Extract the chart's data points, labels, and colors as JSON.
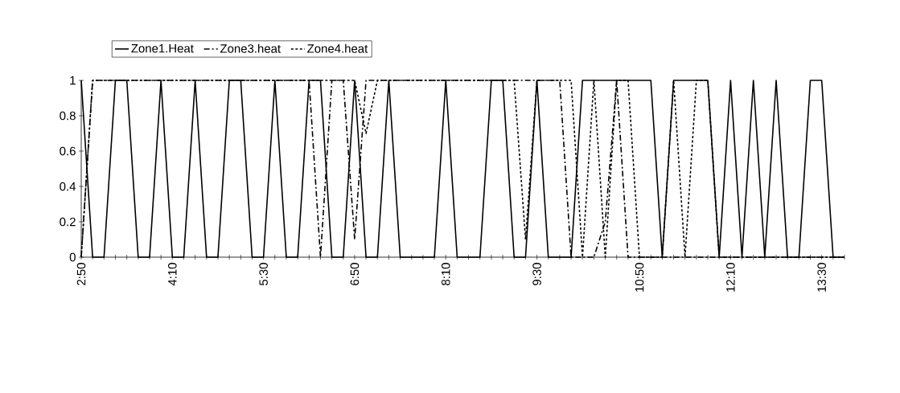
{
  "chart_data": {
    "type": "line",
    "categories": [
      "2:50",
      null,
      null,
      null,
      null,
      null,
      null,
      null,
      "4:10",
      null,
      null,
      null,
      null,
      null,
      null,
      null,
      "5:30",
      null,
      null,
      null,
      null,
      null,
      null,
      null,
      "6:50",
      null,
      null,
      null,
      null,
      null,
      null,
      null,
      "8:10",
      null,
      null,
      null,
      null,
      null,
      null,
      null,
      "9:30",
      null,
      null,
      null,
      null,
      null,
      null,
      null,
      null,
      "10:50",
      null,
      null,
      null,
      null,
      null,
      null,
      null,
      "12:10",
      null,
      null,
      null,
      null,
      null,
      null,
      null,
      "13:30",
      null,
      null
    ],
    "series": [
      {
        "name": "Zone1.Heat",
        "color": "#000000",
        "line_style": "solid",
        "values": [
          1,
          0,
          0,
          1,
          1,
          0,
          0,
          1,
          0,
          0,
          1,
          0,
          0,
          1,
          1,
          0,
          0,
          1,
          0,
          0,
          1,
          1,
          0,
          0,
          1,
          0,
          0,
          1,
          0,
          0,
          0,
          0,
          1,
          0,
          0,
          0,
          1,
          1,
          0,
          0,
          1,
          0,
          0,
          0,
          1,
          1,
          1,
          1,
          1,
          1,
          1,
          0,
          1,
          1,
          1,
          1,
          0,
          1,
          0,
          1,
          0,
          1,
          0,
          0,
          1,
          1,
          0,
          0
        ]
      },
      {
        "name": "Zone3.heat",
        "color": "#000000",
        "line_style": "dashed",
        "values": [
          0,
          1,
          1,
          1,
          1,
          1,
          1,
          1,
          1,
          1,
          1,
          1,
          1,
          1,
          1,
          1,
          1,
          1,
          1,
          1,
          1,
          0,
          1,
          1,
          0.1,
          1,
          1,
          1,
          1,
          1,
          1,
          1,
          1,
          1,
          1,
          1,
          1,
          1,
          1,
          1,
          1,
          1,
          1,
          0,
          0,
          0,
          0.2,
          1,
          0,
          0,
          0,
          0,
          0,
          0,
          0,
          0,
          0,
          0,
          0,
          0,
          0,
          0,
          0,
          0,
          0,
          0,
          0,
          0
        ]
      },
      {
        "name": "Zone4.heat",
        "color": "#000000",
        "line_style": "dotted",
        "values": [
          0,
          1,
          1,
          1,
          1,
          1,
          1,
          1,
          1,
          1,
          1,
          1,
          1,
          1,
          1,
          1,
          1,
          1,
          1,
          1,
          1,
          1,
          1,
          1,
          1,
          0.7,
          1,
          1,
          1,
          1,
          1,
          1,
          1,
          1,
          1,
          1,
          1,
          1,
          1,
          0.1,
          1,
          1,
          1,
          1,
          0,
          1,
          0,
          1,
          1,
          0,
          0,
          0,
          1,
          0,
          1,
          1,
          0,
          0,
          0,
          0,
          0,
          0,
          0,
          0,
          0,
          0,
          0,
          0
        ]
      }
    ],
    "ylim": [
      0,
      1
    ],
    "yticks": [
      0,
      0.2,
      0.4,
      0.6,
      0.8,
      1
    ],
    "grid": false,
    "legend": "top",
    "marker": "none"
  }
}
